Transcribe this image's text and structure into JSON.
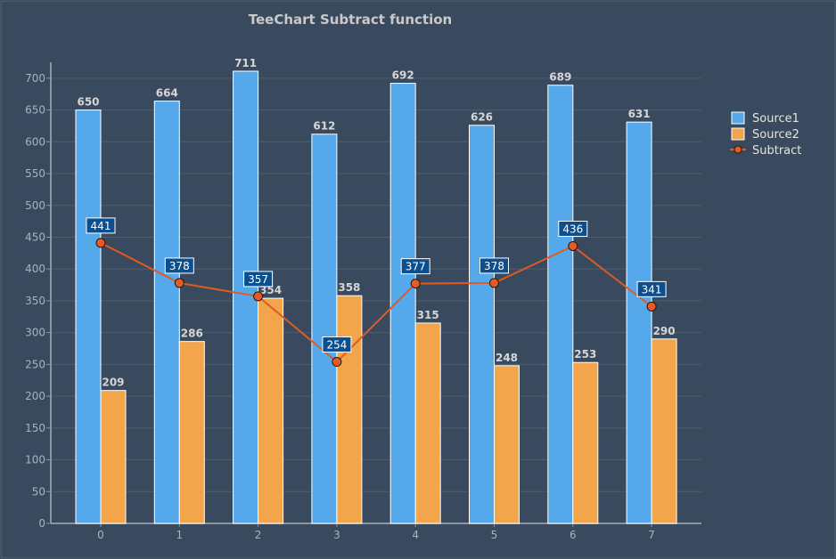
{
  "colors": {
    "background": "#3a4a5e",
    "source1": "#55a9ea",
    "source2": "#f2a54a",
    "subtract_line": "#e05a24",
    "subtract_point": "#e85a23",
    "mark_box": "#0c4f8f",
    "grid": "#4e5e70",
    "axis": "#8a96a3"
  },
  "chart_data": {
    "type": "bar",
    "title": "TeeChart Subtract function",
    "categories": [
      "0",
      "1",
      "2",
      "3",
      "4",
      "5",
      "6",
      "7"
    ],
    "series": [
      {
        "name": "Source1",
        "type": "bar",
        "values": [
          650,
          664,
          711,
          612,
          692,
          626,
          689,
          631
        ]
      },
      {
        "name": "Source2",
        "type": "bar",
        "values": [
          209,
          286,
          354,
          358,
          315,
          248,
          253,
          290
        ]
      },
      {
        "name": "Subtract",
        "type": "line",
        "values": [
          441,
          378,
          357,
          254,
          377,
          378,
          436,
          341
        ]
      }
    ],
    "ylim": [
      0,
      725
    ],
    "yticks": [
      0,
      50,
      100,
      150,
      200,
      250,
      300,
      350,
      400,
      450,
      500,
      550,
      600,
      650,
      700
    ],
    "xlabel": "",
    "ylabel": "",
    "grid": true,
    "legend": {
      "position": "right",
      "entries": [
        "Source1",
        "Source2",
        "Subtract"
      ]
    }
  }
}
